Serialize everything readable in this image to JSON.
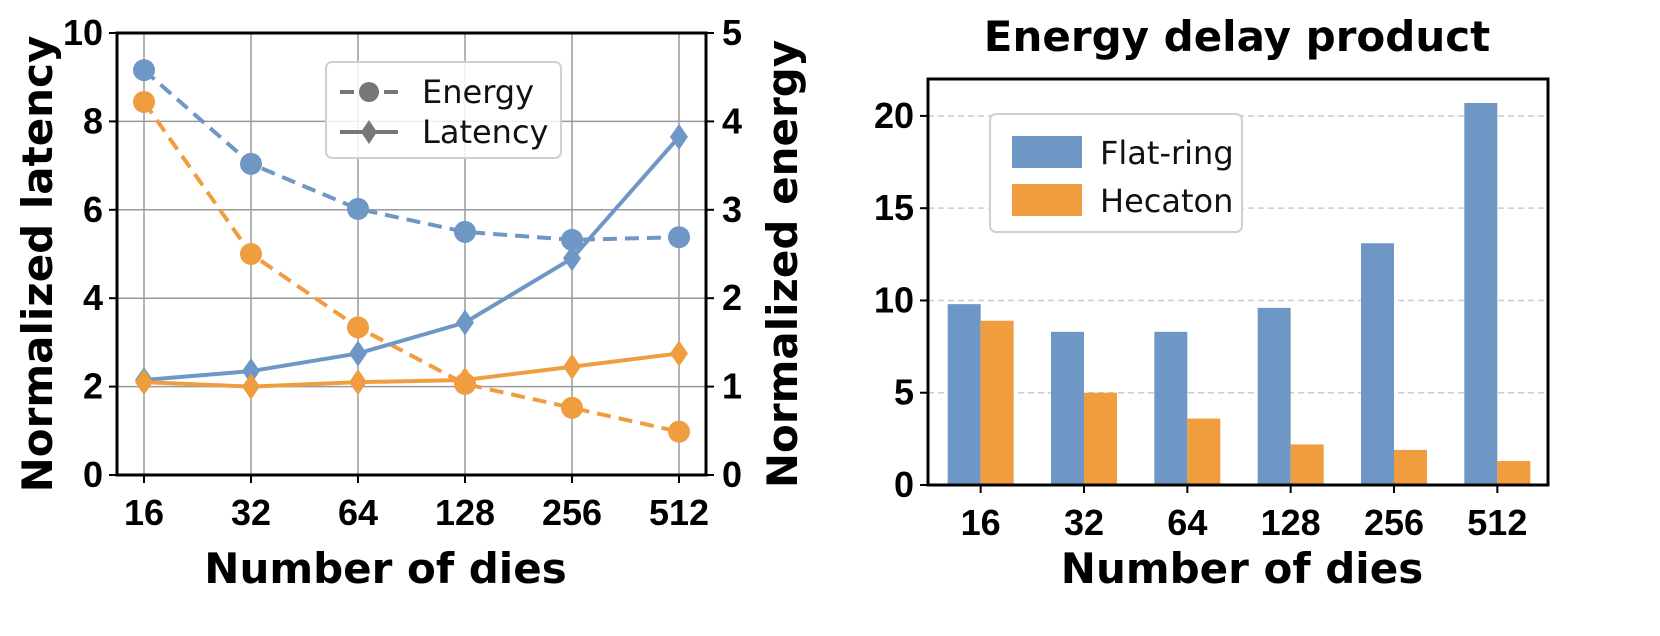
{
  "chart_data": [
    {
      "type": "line",
      "title": "",
      "xlabel": "Number of dies",
      "ylabel_left": "Normalized latency",
      "ylabel_right": "Normalized energy",
      "categories": [
        "16",
        "32",
        "64",
        "128",
        "256",
        "512"
      ],
      "ylim_left": [
        0,
        10
      ],
      "yticks_left": [
        0,
        2,
        4,
        6,
        8,
        10
      ],
      "ylim_right": [
        0,
        5
      ],
      "yticks_right": [
        0,
        1,
        2,
        3,
        4,
        5
      ],
      "grid": true,
      "legend_position": "top-right",
      "legend": [
        {
          "label": "Energy",
          "line": "dashed",
          "marker": "circle"
        },
        {
          "label": "Latency",
          "line": "solid",
          "marker": "diamond"
        }
      ],
      "series": [
        {
          "metric": "energy",
          "axis": "right",
          "style": "dashed",
          "marker": "circle",
          "color": "#6f97c6",
          "values": [
            4.58,
            3.52,
            3.01,
            2.75,
            2.66,
            2.69
          ]
        },
        {
          "metric": "energy",
          "axis": "right",
          "style": "dashed",
          "marker": "circle",
          "color": "#f09d3f",
          "values": [
            4.22,
            2.5,
            1.67,
            1.03,
            0.76,
            0.49
          ]
        },
        {
          "metric": "latency",
          "axis": "left",
          "style": "solid",
          "marker": "diamond",
          "color": "#6f97c6",
          "values": [
            2.15,
            2.35,
            2.75,
            3.45,
            4.9,
            7.65
          ]
        },
        {
          "metric": "latency",
          "axis": "left",
          "style": "solid",
          "marker": "diamond",
          "color": "#f09d3f",
          "values": [
            2.1,
            2.0,
            2.1,
            2.15,
            2.45,
            2.75
          ]
        }
      ]
    },
    {
      "type": "bar",
      "title": "Energy delay product",
      "xlabel": "Number of dies",
      "ylabel": "",
      "categories": [
        "16",
        "32",
        "64",
        "128",
        "256",
        "512"
      ],
      "ylim": [
        0,
        22
      ],
      "yticks": [
        0,
        5,
        10,
        15,
        20
      ],
      "grid": true,
      "legend_position": "top-left",
      "series": [
        {
          "name": "Flat-ring",
          "color": "#6f97c6",
          "values": [
            9.8,
            8.3,
            8.3,
            9.6,
            13.1,
            20.7
          ]
        },
        {
          "name": "Hecaton",
          "color": "#f09d3f",
          "values": [
            8.9,
            5.0,
            3.6,
            2.2,
            1.9,
            1.3
          ]
        }
      ]
    }
  ]
}
